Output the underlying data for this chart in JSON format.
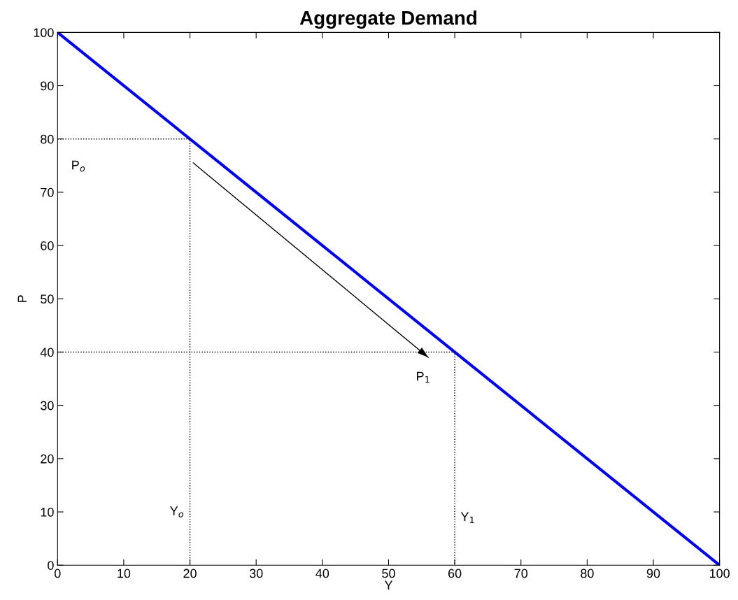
{
  "chart_data": {
    "type": "line",
    "title": "Aggregate Demand",
    "xlabel": "Y",
    "ylabel": "P",
    "xlim": [
      0,
      100
    ],
    "ylim": [
      0,
      100
    ],
    "xticks": [
      0,
      10,
      20,
      30,
      40,
      50,
      60,
      70,
      80,
      90,
      100
    ],
    "yticks": [
      0,
      10,
      20,
      30,
      40,
      50,
      60,
      70,
      80,
      90,
      100
    ],
    "grid": false,
    "legend": false,
    "series": [
      {
        "color": "#0000ff",
        "x": [
          0,
          100
        ],
        "values": [
          100,
          0
        ],
        "line_style": "solid"
      },
      {
        "color": "#000000",
        "x": [
          0,
          20,
          20
        ],
        "values": [
          80,
          80,
          0
        ],
        "line_style": "dotted"
      },
      {
        "color": "#000000",
        "x": [
          0,
          60,
          60
        ],
        "values": [
          40,
          40,
          0
        ],
        "line_style": "dotted"
      },
      {
        "color": "#000000",
        "x": [
          20.5,
          56
        ],
        "values": [
          75.5,
          39
        ],
        "line_style": "solid"
      }
    ],
    "annotations": [
      {
        "text": "P$_{o}$",
        "x": 0,
        "y": 80
      },
      {
        "text": "P$_{1}$",
        "x": 60,
        "y": 40
      },
      {
        "text": "Y$_{o}$",
        "x": 20,
        "y": 10
      },
      {
        "text": "Y$_{1}$",
        "x": 60,
        "y": 10
      }
    ]
  }
}
